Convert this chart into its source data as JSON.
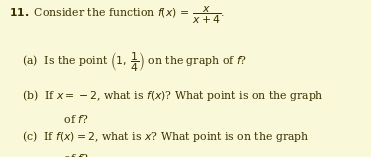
{
  "background_color": "#f9f8d8",
  "text_color": "#3a3000",
  "fig_width": 3.71,
  "fig_height": 1.57,
  "dpi": 100,
  "fs": 7.8,
  "line1_num": "11.",
  "line1_text": " Consider the function $f(x)\\,=\\,\\dfrac{x}{x+4}.$",
  "line_a": "(a)  Is the point $\\left(1,\\,\\dfrac{1}{4}\\right)$ on the graph of $f$?",
  "line_b1": "(b)  If $x = -2$, what is $f(x)$? What point is on the graph",
  "line_b2": "      of $f$?",
  "line_c1": "(c)  If $f(x) = 2$, what is $x$? What point is on the graph",
  "line_c2": "      of $f$?"
}
